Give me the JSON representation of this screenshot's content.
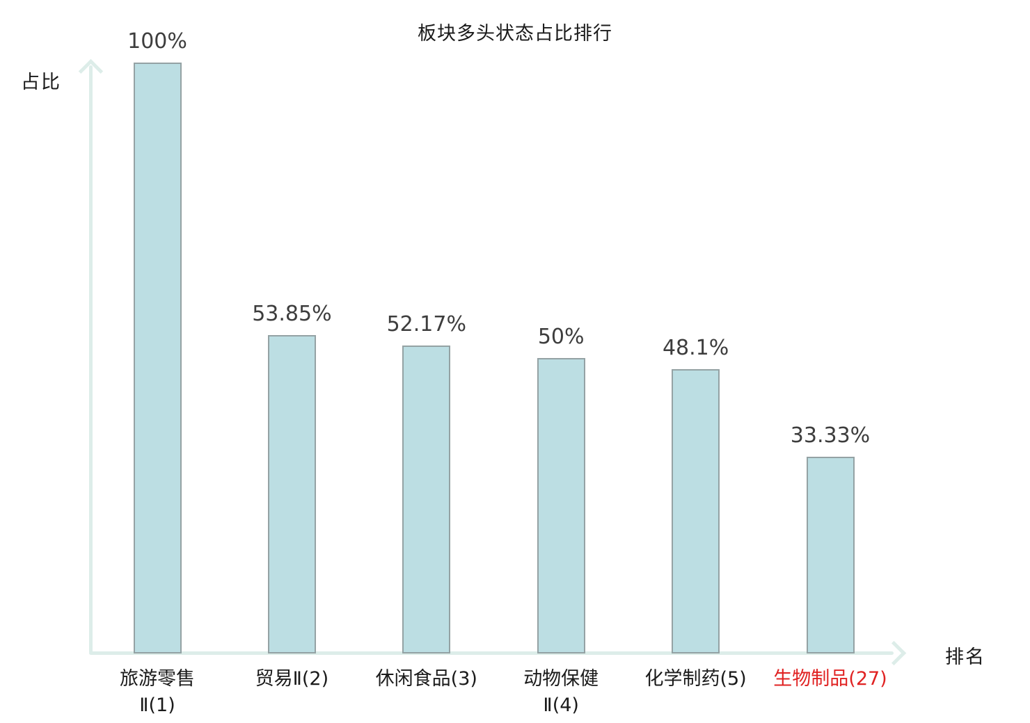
{
  "title": "板块多头状态占比排行",
  "colors": {
    "bar_fill": "#bcdee3",
    "bar_border": "#94a2a4",
    "axis": "#ddede9",
    "value_label": "#3d3d3d",
    "category_label": "#1a1a1a",
    "highlight": "#e02222"
  },
  "chart_data": {
    "type": "bar",
    "title": "板块多头状态占比排行",
    "xlabel": "排名",
    "ylabel": "占比",
    "ylim": [
      0,
      100
    ],
    "grid": false,
    "legend": false,
    "categories": [
      "旅游零售Ⅱ(1)",
      "贸易Ⅱ(2)",
      "休闲食品(3)",
      "动物保健Ⅱ(4)",
      "化学制药(5)",
      "生物制品(27)"
    ],
    "category_lines": [
      [
        "旅游零售",
        "Ⅱ(1)"
      ],
      [
        "贸易Ⅱ(2)"
      ],
      [
        "休闲食品(3)"
      ],
      [
        "动物保健",
        "Ⅱ(4)"
      ],
      [
        "化学制药(5)"
      ],
      [
        "生物制品(27)"
      ]
    ],
    "values": [
      100,
      53.85,
      52.17,
      50,
      48.1,
      33.33
    ],
    "value_labels": [
      "100%",
      "53.85%",
      "52.17%",
      "50%",
      "48.1%",
      "33.33%"
    ],
    "highlighted_category_index": 5
  }
}
